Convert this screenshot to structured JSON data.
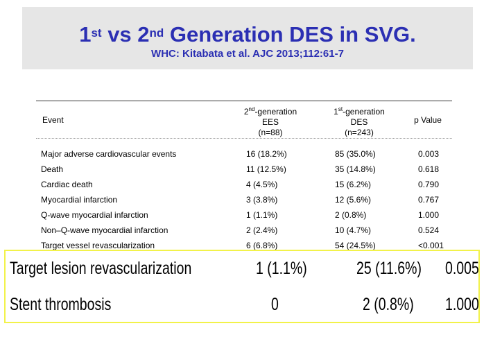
{
  "header": {
    "title_part1": "1",
    "title_sup1": "st",
    "title_part2": " vs 2",
    "title_sup2": "nd",
    "title_part3": " Generation DES in SVG.",
    "subtitle": "WHC: Kitabata et al. AJC 2013;112:61-7"
  },
  "table": {
    "columns": {
      "event": "Event",
      "c1_pre": "2",
      "c1_sup": "nd",
      "c1_post": "-generation",
      "c1_line2": "EES",
      "c1_line3": "(n=88)",
      "c2_pre": "1",
      "c2_sup": "st",
      "c2_post": "-generation",
      "c2_line2": "DES",
      "c2_line3": "(n=243)",
      "pvalue": "p Value"
    },
    "rows": [
      {
        "event": "Major adverse cardiovascular events",
        "ees": "16 (18.2%)",
        "des": "85 (35.0%)",
        "p": "0.003"
      },
      {
        "event": "Death",
        "ees": "11 (12.5%)",
        "des": "35 (14.8%)",
        "p": "0.618"
      },
      {
        "event": "Cardiac death",
        "ees": "4 (4.5%)",
        "des": "15 (6.2%)",
        "p": "0.790"
      },
      {
        "event": "Myocardial infarction",
        "ees": "3 (3.8%)",
        "des": "12 (5.6%)",
        "p": "0.767"
      },
      {
        "event": "Q-wave myocardial infarction",
        "ees": "1 (1.1%)",
        "des": "2 (0.8%)",
        "p": "1.000"
      },
      {
        "event": "Non–Q-wave myocardial infarction",
        "ees": "2 (2.4%)",
        "des": "10 (4.7%)",
        "p": "0.524"
      },
      {
        "event": "Target vessel revascularization",
        "ees": "6 (6.8%)",
        "des": "54 (24.5%)",
        "p": "<0.001"
      }
    ],
    "highlighted_rows": [
      {
        "event": "Target lesion revascularization",
        "ees": "1 (1.1%)",
        "des": "25 (11.6%)",
        "p": "0.005"
      },
      {
        "event": "Stent thrombosis",
        "ees": "0",
        "des": "2 (0.8%)",
        "p": "1.000"
      }
    ]
  },
  "colors": {
    "title": "#2b2fb3",
    "banner_bg": "#e6e6e6",
    "highlight_border": "#f2f24a"
  }
}
